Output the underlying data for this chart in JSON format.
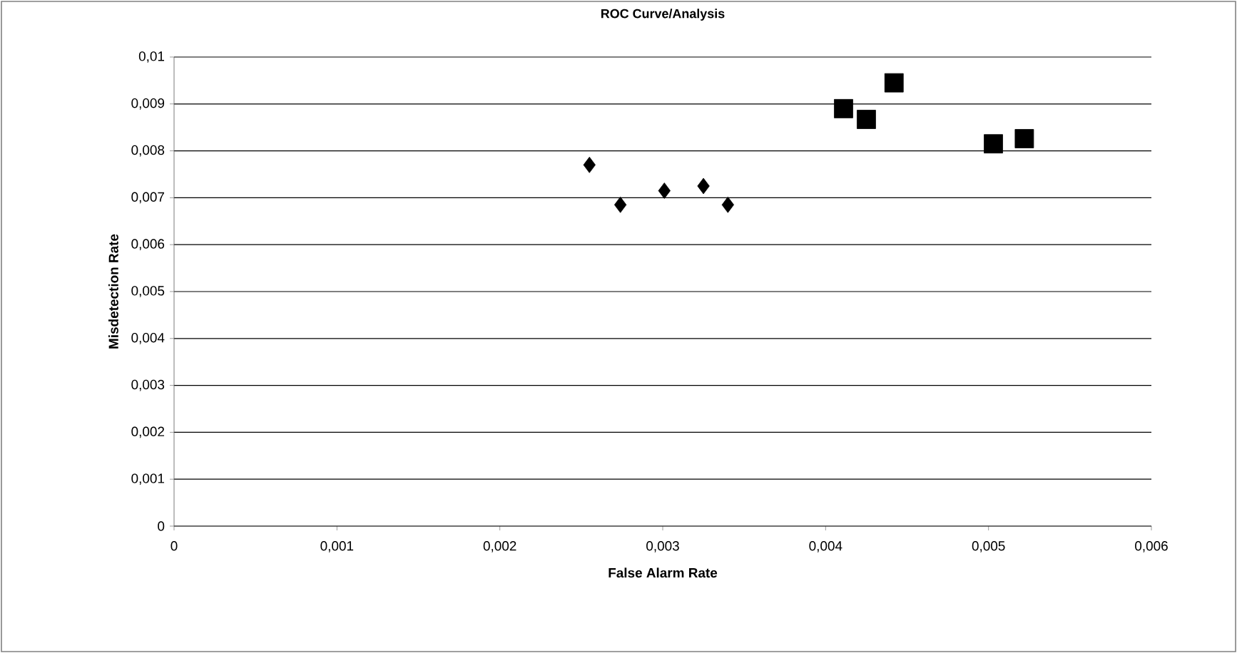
{
  "chart_data": {
    "type": "scatter",
    "title": "ROC Curve/Analysis",
    "xlabel": "False Alarm Rate",
    "ylabel": "Misdetection Rate",
    "xlim": [
      0,
      0.006
    ],
    "ylim": [
      0,
      0.01
    ],
    "xticks": [
      0,
      {
        "value": 0.001,
        "label": "0,001"
      },
      {
        "value": 0.002,
        "label": "0,002"
      },
      {
        "value": 0.003,
        "label": "0,003"
      },
      {
        "value": 0.004,
        "label": "0,004"
      },
      {
        "value": 0.005,
        "label": "0,005"
      },
      {
        "value": 0.006,
        "label": "0,006"
      }
    ],
    "yticks": [
      0,
      {
        "value": 0.001,
        "label": "0,001"
      },
      {
        "value": 0.002,
        "label": "0,002"
      },
      {
        "value": 0.003,
        "label": "0,003"
      },
      {
        "value": 0.004,
        "label": "0,004"
      },
      {
        "value": 0.005,
        "label": "0,005"
      },
      {
        "value": 0.006,
        "label": "0,006"
      },
      {
        "value": 0.007,
        "label": "0,007"
      },
      {
        "value": 0.008,
        "label": "0,008"
      },
      {
        "value": 0.009,
        "label": "0,009"
      },
      {
        "value": 0.01,
        "label": "0,01"
      }
    ],
    "grid": "y",
    "series": [
      {
        "color": "#000000",
        "marker": "diamond",
        "x": [
          0.00255,
          0.00274,
          0.00301,
          0.00325,
          0.0034
        ],
        "values": [
          0.0077,
          0.00685,
          0.00715,
          0.00725,
          0.00685
        ]
      },
      {
        "color": "#000000",
        "marker": "square",
        "x": [
          0.00411,
          0.00425,
          0.00442,
          0.00503,
          0.00522
        ],
        "values": [
          0.0089,
          0.00867,
          0.00945,
          0.00815,
          0.00826
        ]
      }
    ]
  }
}
